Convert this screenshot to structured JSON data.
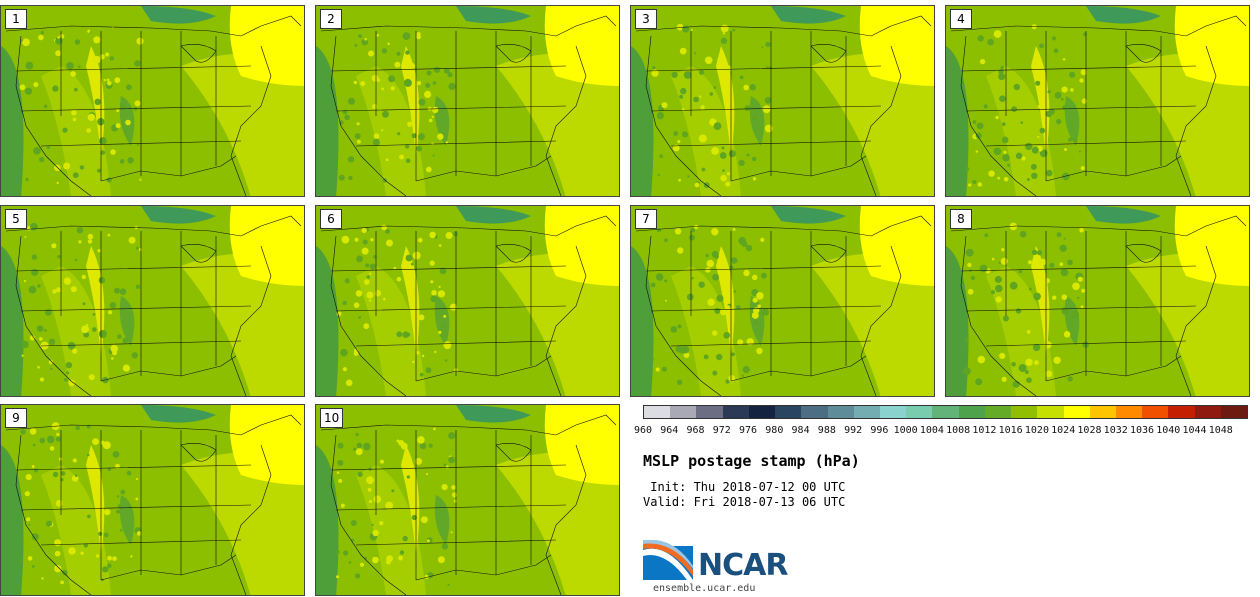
{
  "panels": [
    {
      "label": "1"
    },
    {
      "label": "2"
    },
    {
      "label": "3"
    },
    {
      "label": "4"
    },
    {
      "label": "5"
    },
    {
      "label": "6"
    },
    {
      "label": "7"
    },
    {
      "label": "8"
    },
    {
      "label": "9"
    },
    {
      "label": "10"
    }
  ],
  "colorbar": {
    "ticks": [
      "960",
      "964",
      "968",
      "972",
      "976",
      "980",
      "984",
      "988",
      "992",
      "996",
      "1000",
      "1004",
      "1008",
      "1012",
      "1016",
      "1020",
      "1024",
      "1028",
      "1032",
      "1036",
      "1040",
      "1044",
      "1048"
    ],
    "colors": [
      "#dcdde2",
      "#a8a9b5",
      "#6c6f84",
      "#2c3a55",
      "#142440",
      "#2a4562",
      "#4b6e82",
      "#5e8c98",
      "#73adb2",
      "#8ad2cd",
      "#79ccad",
      "#62b37a",
      "#4ea24c",
      "#64ac27",
      "#8fbf00",
      "#c5df00",
      "#ffff00",
      "#ffc400",
      "#ff8a00",
      "#f05000",
      "#c42000",
      "#8e1a10",
      "#6e1a10"
    ]
  },
  "title": "MSLP postage stamp (hPa)",
  "init": " Init: Thu 2018-07-12 00 UTC",
  "valid": "Valid: Fri 2018-07-13 06 UTC",
  "logo_text": "NCAR",
  "url": "ensemble.ucar.edu"
}
